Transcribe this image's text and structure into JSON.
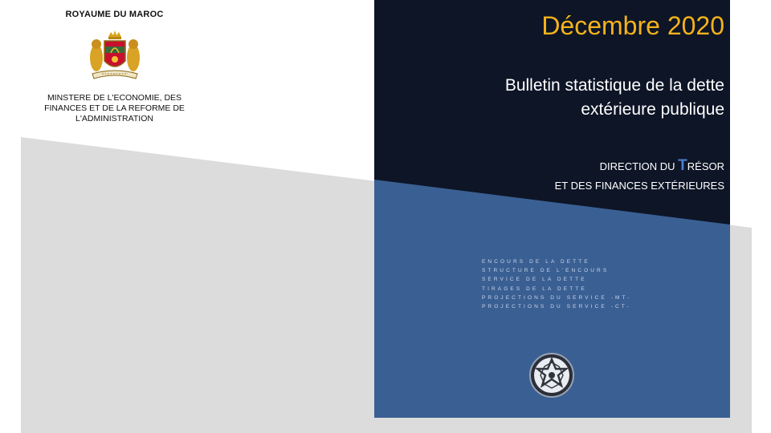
{
  "header": {
    "kingdom": "ROYAUME DU MAROC",
    "ministry_lines": [
      "MINSTERE DE L'ECONOMIE, DES",
      "FINANCES ET DE LA REFORME DE",
      "L'ADMINISTRATION"
    ],
    "coat_of_arms_icon": "moroccan-coat-of-arms-icon"
  },
  "cover": {
    "date": "Décembre 2020",
    "title_lines": [
      "Bulletin statistique de la dette",
      "extérieure publique"
    ],
    "direction": {
      "line1_prefix": "DIRECTION DU ",
      "line1_big_letter": "T",
      "line1_suffix": "RÉSOR",
      "line2": "ET DES FINANCES EXTÉRIEURES"
    },
    "topics": [
      "ENCOURS DE LA DETTE",
      "STRUCTURE DE L'ENCOURS",
      "SERVICE DE LA DETTE",
      "TIRAGES DE LA DETTE",
      "PROJECTIONS DU SERVICE -MT-",
      "PROJECTIONS DU SERVICE -CT-"
    ],
    "emblem_icon": "treasury-star-emblem-icon"
  },
  "colors": {
    "navy": "#0d1526",
    "blue": "#3a5f93",
    "gray": "#dcdcdc",
    "gold": "#f5b21a",
    "accent_t": "#4d7fd0"
  }
}
